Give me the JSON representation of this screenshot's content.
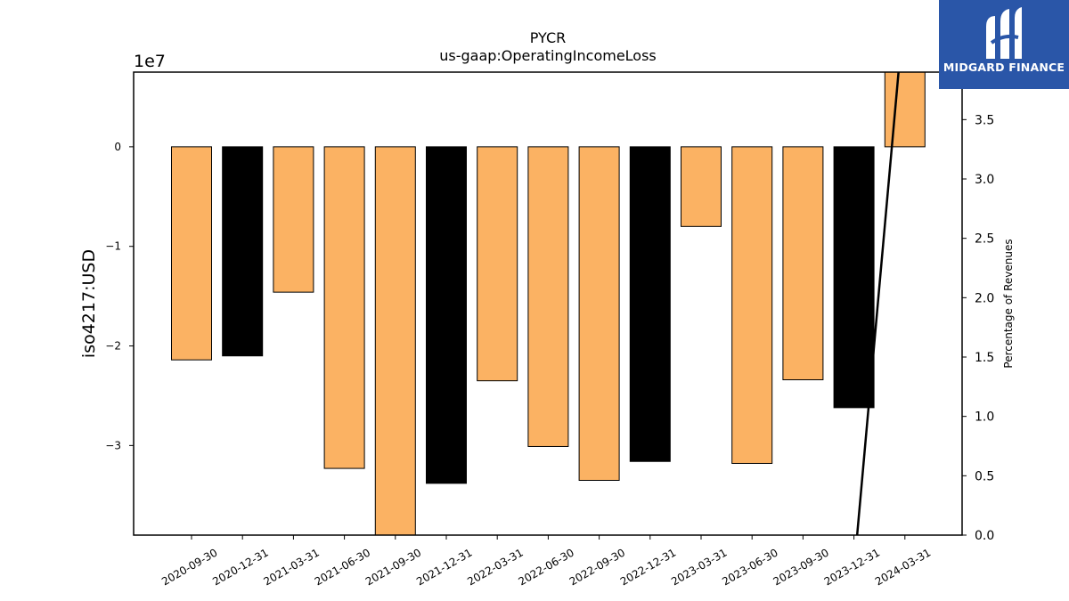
{
  "brand": {
    "name": "MIDGARD FINANCE",
    "color": "#2a56a8",
    "logo_icon": "midgard-m-icon"
  },
  "chart_data": {
    "type": "bar",
    "title": "PYCR",
    "subtitle": "us-gaap:OperatingIncomeLoss",
    "ylabel": "iso4217:USD",
    "ylabel_right": "Percentage of Revenues",
    "y_offset_label": "1e7",
    "y_scale": 10000000,
    "ylim": [
      -39000000,
      7500000
    ],
    "yticks": [
      0,
      -10000000,
      -20000000,
      -30000000
    ],
    "ytick_labels": [
      "0",
      "−1",
      "−2",
      "−3"
    ],
    "ylim_right": [
      0.0,
      3.9
    ],
    "yticks_right": [
      0.0,
      0.5,
      1.0,
      1.5,
      2.0,
      2.5,
      3.0,
      3.5
    ],
    "ytick_labels_right": [
      "0.0",
      "0.5",
      "1.0",
      "1.5",
      "2.0",
      "2.5",
      "3.0",
      "3.5"
    ],
    "categories": [
      "2020-09-30",
      "2020-12-31",
      "2021-03-31",
      "2021-06-30",
      "2021-09-30",
      "2021-12-31",
      "2022-03-31",
      "2022-06-30",
      "2022-09-30",
      "2022-12-31",
      "2023-03-31",
      "2023-06-30",
      "2023-09-30",
      "2023-12-31",
      "2024-03-31"
    ],
    "values": [
      -21400000,
      -21000000,
      -14600000,
      -32300000,
      -39500000,
      -33800000,
      -23500000,
      -30100000,
      -33500000,
      -31600000,
      -8000000,
      -31800000,
      -23400000,
      -26200000,
      8500000
    ],
    "bar_colors": [
      "#fbb263",
      "#000000",
      "#fbb263",
      "#fbb263",
      "#fbb263",
      "#000000",
      "#fbb263",
      "#fbb263",
      "#fbb263",
      "#000000",
      "#fbb263",
      "#fbb263",
      "#fbb263",
      "#000000",
      "#fbb263"
    ],
    "line_series": {
      "x": [
        "2023-12-31",
        "2024-03-31"
      ],
      "values": [
        -0.3,
        4.5
      ],
      "color": "#000000"
    },
    "grid": false,
    "legend": false
  }
}
